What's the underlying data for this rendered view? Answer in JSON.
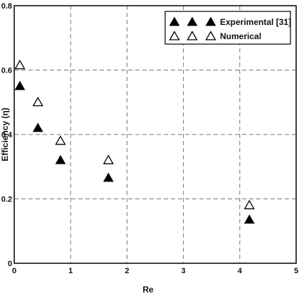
{
  "chart_data": {
    "type": "scatter",
    "xlabel": "Re",
    "ylabel": "Efficiency (η)",
    "xlim": [
      0,
      5
    ],
    "ylim": [
      0,
      0.8
    ],
    "x_ticks": [
      "0",
      "1",
      "2",
      "3",
      "4",
      "5"
    ],
    "y_ticks": [
      "0",
      "0.2",
      "0.4",
      "0.6",
      "0.8"
    ],
    "grid": true,
    "legend_position": "top-right",
    "series": [
      {
        "name": "Experimental [31]",
        "marker": "filled-triangle",
        "color": "#000000",
        "x": [
          0.1,
          0.42,
          0.82,
          1.67,
          4.17
        ],
        "y": [
          0.55,
          0.42,
          0.32,
          0.265,
          0.135
        ]
      },
      {
        "name": "Numerical",
        "marker": "open-triangle",
        "color": "#000000",
        "x": [
          0.1,
          0.42,
          0.82,
          1.67,
          4.17
        ],
        "y": [
          0.615,
          0.5,
          0.38,
          0.32,
          0.18
        ]
      }
    ]
  }
}
